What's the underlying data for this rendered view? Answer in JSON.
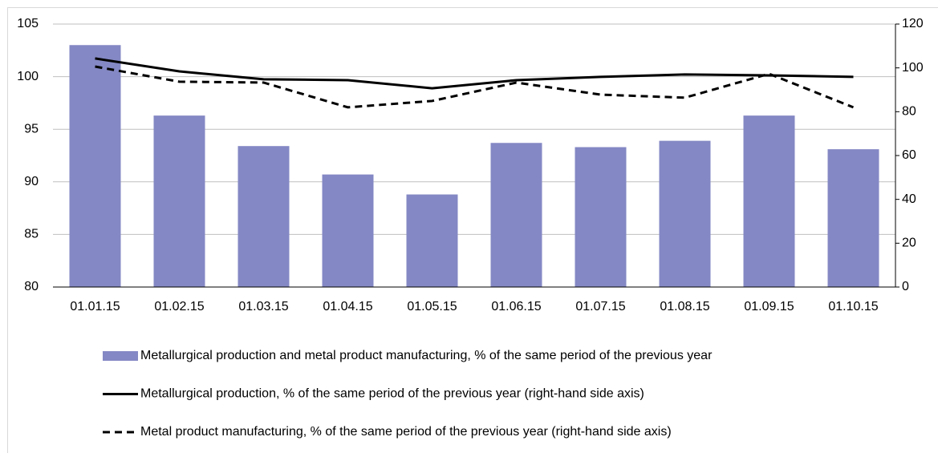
{
  "chart_data": {
    "type": "combo",
    "categories": [
      "01.01.15",
      "01.02.15",
      "01.03.15",
      "01.04.15",
      "01.05.15",
      "01.06.15",
      "01.07.15",
      "01.08.15",
      "01.09.15",
      "01.10.15"
    ],
    "series": [
      {
        "name": "Metallurgical production and metal product manufacturing, % of the same period of the previous year",
        "type": "bar",
        "color": "#8488c4",
        "values": [
          103.0,
          96.3,
          93.4,
          90.7,
          88.8,
          93.7,
          93.3,
          93.9,
          96.3,
          93.1
        ]
      },
      {
        "name": "Metallurgical production, % of the same period of the previous year (right-hand side axis)",
        "type": "line",
        "color": "#000000",
        "dash": false,
        "axis": "y2",
        "values": [
          104.3,
          98.4,
          94.8,
          94.4,
          90.7,
          94.4,
          95.9,
          97.0,
          96.6,
          95.9
        ]
      },
      {
        "name": "Metal product manufacturing, % of the same period of the previous year (right-hand side axis)",
        "type": "line",
        "color": "#000000",
        "dash": true,
        "axis": "y2",
        "values": [
          100.6,
          93.7,
          93.3,
          82.0,
          84.9,
          93.3,
          87.8,
          86.4,
          97.3,
          82.0
        ]
      }
    ],
    "ylim": [
      80,
      105
    ],
    "yticks": [
      80,
      85,
      90,
      95,
      100,
      105
    ],
    "y2lim": [
      0,
      120
    ],
    "y2ticks": [
      0,
      20,
      40,
      60,
      80,
      100,
      120
    ],
    "grid": true
  }
}
